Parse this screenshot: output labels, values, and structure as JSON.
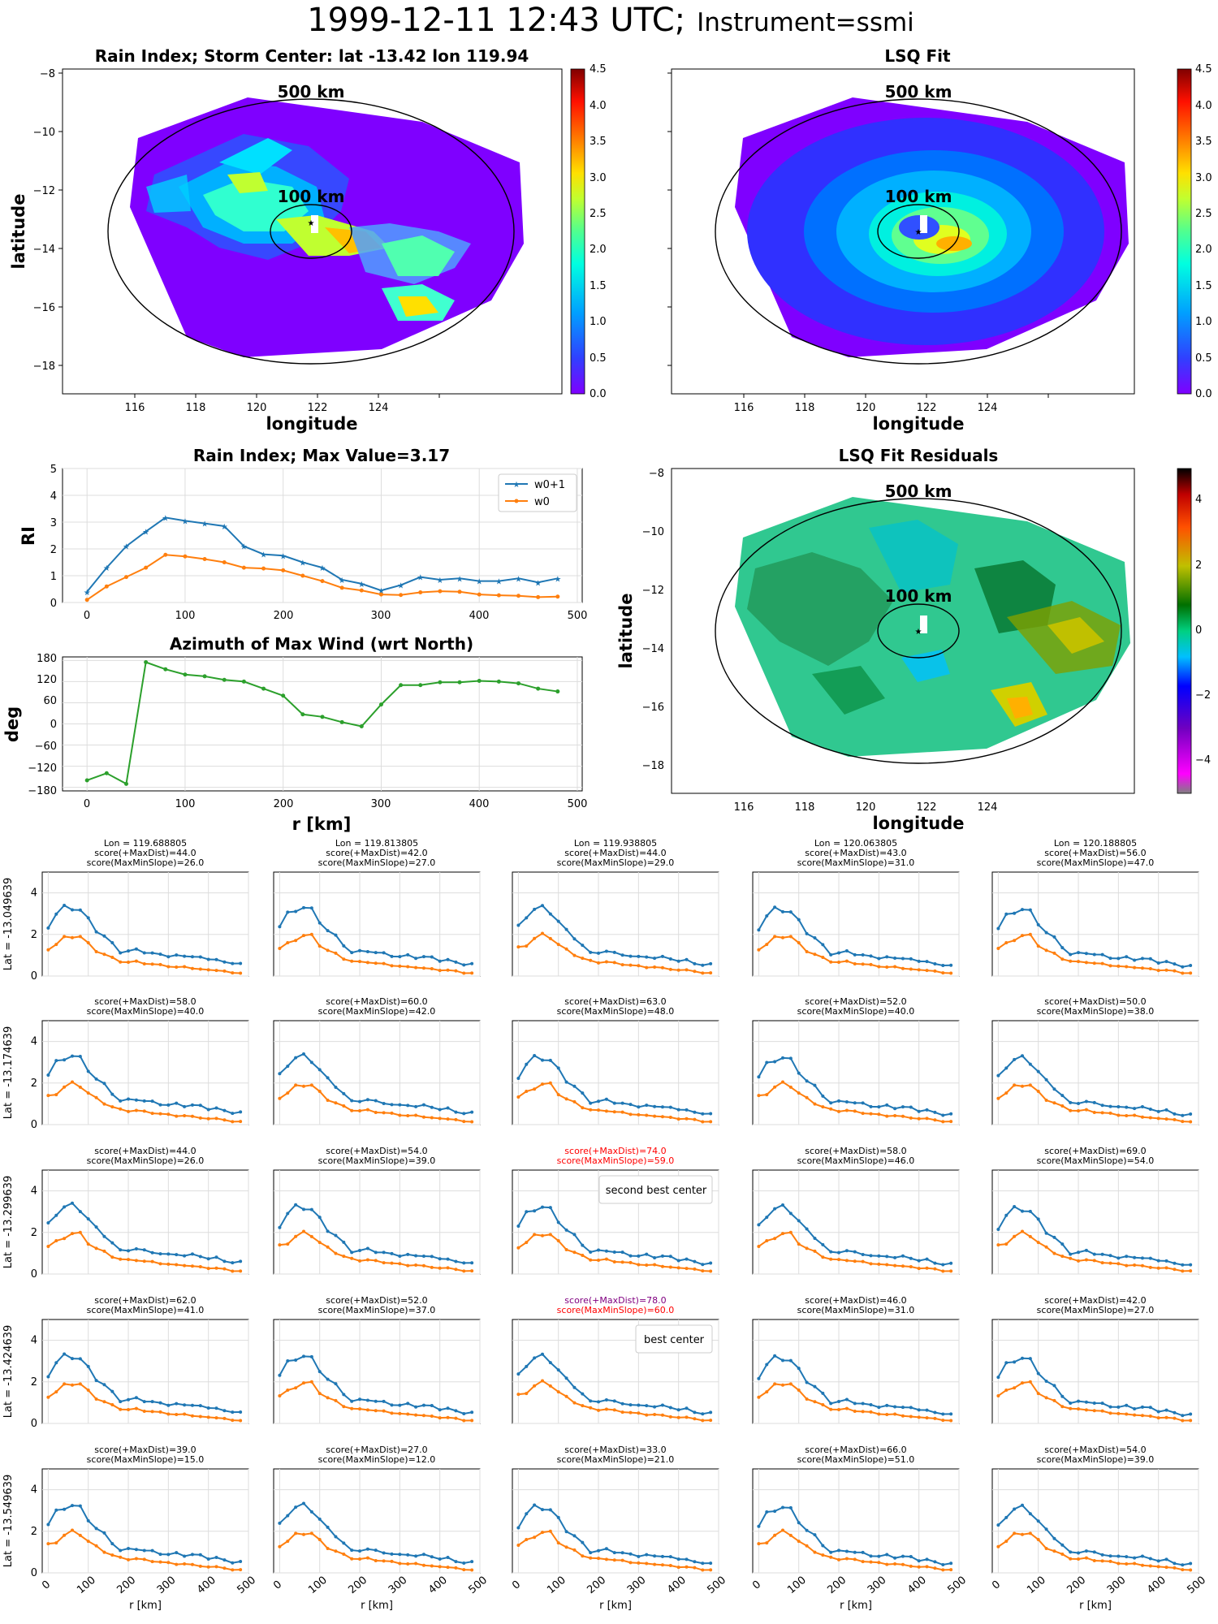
{
  "header": {
    "title_main": "1999-12-11 12:43 UTC;",
    "title_sub": "Instrument=ssmi"
  },
  "panels": {
    "rain_index_map": {
      "title": "Rain Index; Storm Center: lat -13.42 lon 119.94",
      "xlabel": "longitude",
      "ylabel": "latitude",
      "xticks": [
        "116",
        "118",
        "120",
        "122",
        "124"
      ],
      "yticks": [
        "−8",
        "−10",
        "−12",
        "−14",
        "−16",
        "−18"
      ],
      "circle_labels": [
        "500 km",
        "100 km"
      ],
      "colorbar_ticks": [
        "0.0",
        "0.5",
        "1.0",
        "1.5",
        "2.0",
        "2.5",
        "3.0",
        "3.5",
        "4.0",
        "4.5"
      ]
    },
    "lsq_fit_map": {
      "title": "LSQ Fit",
      "xlabel": "longitude",
      "xticks": [
        "116",
        "118",
        "120",
        "122",
        "124"
      ],
      "circle_labels": [
        "500 km",
        "100 km"
      ],
      "colorbar_ticks": [
        "0.0",
        "0.5",
        "1.0",
        "1.5",
        "2.0",
        "2.5",
        "3.0",
        "3.5",
        "4.0",
        "4.5"
      ]
    },
    "residuals_map": {
      "title": "LSQ Fit Residuals",
      "xlabel": "longitude",
      "ylabel": "latitude",
      "xticks": [
        "116",
        "118",
        "120",
        "122",
        "124"
      ],
      "yticks": [
        "−8",
        "−10",
        "−12",
        "−14",
        "−16",
        "−18"
      ],
      "circle_labels": [
        "500 km",
        "100 km"
      ],
      "colorbar_ticks": [
        "4",
        "2",
        "0",
        "−2",
        "−4"
      ]
    },
    "rain_index_profile": {
      "title": "Rain Index; Max Value=3.17",
      "ylabel": "RI",
      "xticks": [
        "0",
        "100",
        "200",
        "300",
        "400",
        "500"
      ],
      "yticks": [
        "0",
        "1",
        "2",
        "3",
        "4",
        "5"
      ],
      "legend": [
        "w0+1",
        "w0"
      ]
    },
    "azimuth": {
      "title": "Azimuth of Max Wind (wrt North)",
      "ylabel": "deg",
      "xlabel": "r [km]",
      "xticks": [
        "0",
        "100",
        "200",
        "300",
        "400",
        "500"
      ],
      "yticks": [
        "180",
        "120",
        "60",
        "0",
        "−60",
        "−120",
        "−180"
      ]
    }
  },
  "grid": {
    "col_headers": [
      "Lon = 119.688805",
      "Lon = 119.813805",
      "Lon = 119.938805",
      "Lon = 120.063805",
      "Lon = 120.188805"
    ],
    "row_labels": [
      "Lat = -13.049639",
      "Lat = -13.174639",
      "Lat = -13.299639",
      "Lat = -13.424639",
      "Lat = -13.549639"
    ],
    "scores": [
      [
        [
          "score(+MaxDist)=44.0",
          "score(MaxMinSlope)=26.0"
        ],
        [
          "score(+MaxDist)=42.0",
          "score(MaxMinSlope)=27.0"
        ],
        [
          "score(+MaxDist)=44.0",
          "score(MaxMinSlope)=29.0"
        ],
        [
          "score(+MaxDist)=43.0",
          "score(MaxMinSlope)=31.0"
        ],
        [
          "score(+MaxDist)=56.0",
          "score(MaxMinSlope)=47.0"
        ]
      ],
      [
        [
          "score(+MaxDist)=58.0",
          "score(MaxMinSlope)=40.0"
        ],
        [
          "score(+MaxDist)=60.0",
          "score(MaxMinSlope)=42.0"
        ],
        [
          "score(+MaxDist)=63.0",
          "score(MaxMinSlope)=48.0"
        ],
        [
          "score(+MaxDist)=52.0",
          "score(MaxMinSlope)=40.0"
        ],
        [
          "score(+MaxDist)=50.0",
          "score(MaxMinSlope)=38.0"
        ]
      ],
      [
        [
          "score(+MaxDist)=44.0",
          "score(MaxMinSlope)=26.0"
        ],
        [
          "score(+MaxDist)=54.0",
          "score(MaxMinSlope)=39.0"
        ],
        [
          "score(+MaxDist)=74.0",
          "score(MaxMinSlope)=59.0"
        ],
        [
          "score(+MaxDist)=58.0",
          "score(MaxMinSlope)=46.0"
        ],
        [
          "score(+MaxDist)=69.0",
          "score(MaxMinSlope)=54.0"
        ]
      ],
      [
        [
          "score(+MaxDist)=62.0",
          "score(MaxMinSlope)=41.0"
        ],
        [
          "score(+MaxDist)=52.0",
          "score(MaxMinSlope)=37.0"
        ],
        [
          "score(+MaxDist)=78.0",
          "score(MaxMinSlope)=60.0"
        ],
        [
          "score(+MaxDist)=46.0",
          "score(MaxMinSlope)=31.0"
        ],
        [
          "score(+MaxDist)=42.0",
          "score(MaxMinSlope)=27.0"
        ]
      ],
      [
        [
          "score(+MaxDist)=39.0",
          "score(MaxMinSlope)=15.0"
        ],
        [
          "score(+MaxDist)=27.0",
          "score(MaxMinSlope)=12.0"
        ],
        [
          "score(+MaxDist)=33.0",
          "score(MaxMinSlope)=21.0"
        ],
        [
          "score(+MaxDist)=66.0",
          "score(MaxMinSlope)=51.0"
        ],
        [
          "score(+MaxDist)=54.0",
          "score(MaxMinSlope)=39.0"
        ]
      ]
    ],
    "highlight_colors": {
      "second_best": "#ff0000",
      "best_top": "#800080",
      "best_bottom": "#ff0000"
    },
    "annotations": {
      "second_best": "second best center",
      "best": "best center"
    },
    "xticks": [
      "0",
      "100",
      "200",
      "300",
      "400",
      "500"
    ],
    "yticks": [
      "0",
      "2",
      "4"
    ],
    "xlabel": "r [km]"
  },
  "colors": {
    "series_w0p1": "#1f77b4",
    "series_w0": "#ff7f0e",
    "azimuth": "#2ca02c"
  },
  "chart_data": [
    {
      "type": "line",
      "title": "Rain Index; Max Value=3.17",
      "xlabel": "",
      "ylabel": "RI",
      "xlim": [
        -25,
        505
      ],
      "ylim": [
        0,
        5
      ],
      "grid": true,
      "legend_position": "top-right",
      "x": [
        0,
        20,
        40,
        60,
        80,
        100,
        120,
        140,
        160,
        180,
        200,
        220,
        240,
        260,
        280,
        300,
        320,
        340,
        360,
        380,
        400,
        420,
        440,
        460,
        480
      ],
      "series": [
        {
          "name": "w0+1",
          "values": [
            0.4,
            1.3,
            2.1,
            2.65,
            3.17,
            3.05,
            2.95,
            2.85,
            2.1,
            1.8,
            1.75,
            1.5,
            1.3,
            0.85,
            0.7,
            0.45,
            0.65,
            0.95,
            0.85,
            0.9,
            0.8,
            0.8,
            0.9,
            0.75,
            0.9
          ]
        },
        {
          "name": "w0",
          "values": [
            0.1,
            0.6,
            0.95,
            1.3,
            1.78,
            1.72,
            1.62,
            1.5,
            1.3,
            1.27,
            1.2,
            1.0,
            0.8,
            0.55,
            0.45,
            0.3,
            0.28,
            0.38,
            0.42,
            0.4,
            0.3,
            0.27,
            0.25,
            0.2,
            0.22
          ]
        }
      ]
    },
    {
      "type": "line",
      "title": "Azimuth of Max Wind (wrt North)",
      "xlabel": "r [km]",
      "ylabel": "deg",
      "xlim": [
        -25,
        505
      ],
      "ylim": [
        -190,
        190
      ],
      "grid": true,
      "x": [
        0,
        20,
        40,
        60,
        80,
        100,
        120,
        140,
        160,
        180,
        200,
        220,
        240,
        260,
        280,
        300,
        320,
        340,
        360,
        380,
        400,
        420,
        440,
        460,
        480
      ],
      "series": [
        {
          "name": "",
          "values": [
            -160,
            -140,
            -170,
            175,
            155,
            140,
            135,
            125,
            120,
            100,
            80,
            27,
            20,
            5,
            -7,
            55,
            110,
            110,
            118,
            118,
            122,
            120,
            115,
            100,
            92
          ]
        }
      ]
    }
  ]
}
